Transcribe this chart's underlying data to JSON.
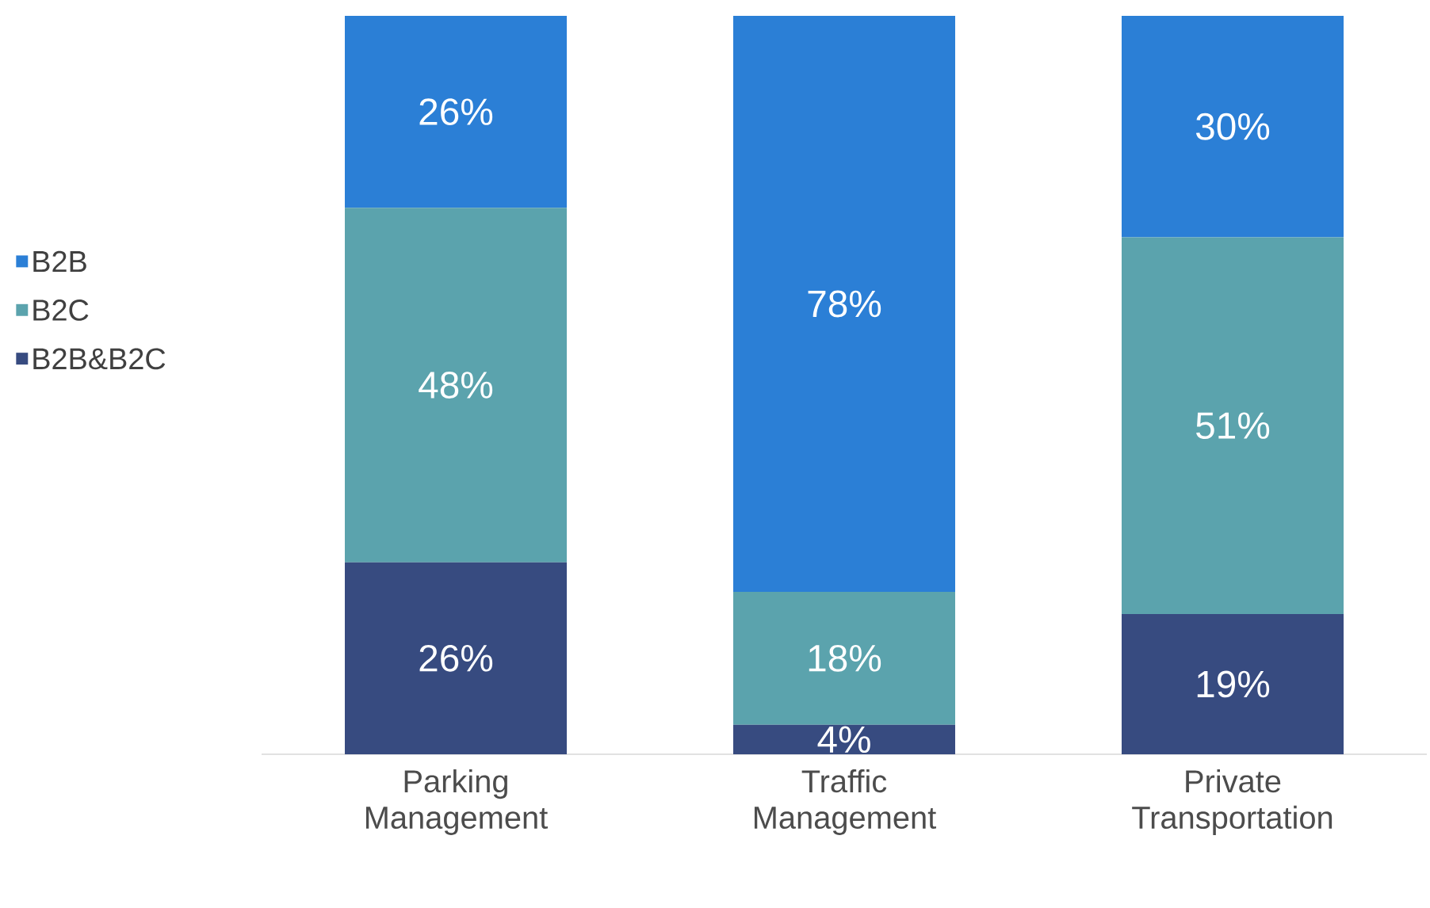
{
  "chart_data": {
    "type": "bar",
    "stacked": true,
    "categories": [
      "Parking Management",
      "Traffic Management",
      "Private Transportation"
    ],
    "tick_labels": "x",
    "legend": "left",
    "grid": false,
    "series": [
      {
        "name": "B2B&B2C",
        "color": "#374b80",
        "values": [
          26,
          4,
          19
        ],
        "value_labels": [
          "26%",
          "4%",
          "19%"
        ]
      },
      {
        "name": "B2C",
        "color": "#5ba3ad",
        "values": [
          48,
          18,
          51
        ],
        "value_labels": [
          "48%",
          "18%",
          "51%"
        ]
      },
      {
        "name": "B2B",
        "color": "#2b7fd6",
        "values": [
          26,
          78,
          30
        ],
        "value_labels": [
          "26%",
          "78%",
          "30%"
        ]
      }
    ]
  }
}
